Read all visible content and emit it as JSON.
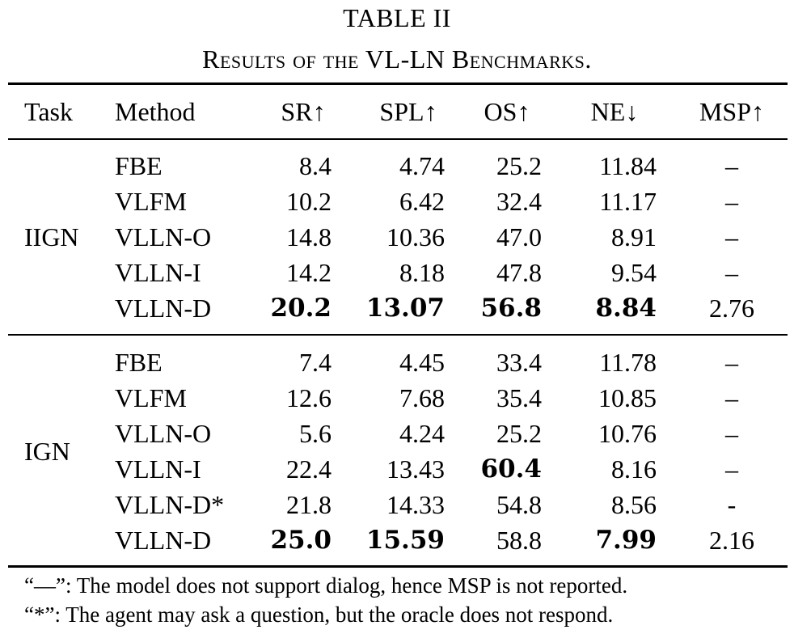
{
  "caption": {
    "title": "TABLE II",
    "subtitle": "Results of the VL-LN Benchmarks."
  },
  "table": {
    "headers": [
      "Task",
      "Method",
      "SR↑",
      "SPL↑",
      "OS↑",
      "NE↓",
      "MSP↑"
    ],
    "groups": [
      {
        "task": "IIGN",
        "rows": [
          {
            "method": "FBE",
            "sr": "8.4",
            "spl": "4.74",
            "os": "25.2",
            "ne": "11.84",
            "msp": "–"
          },
          {
            "method": "VLFM",
            "sr": "10.2",
            "spl": "6.42",
            "os": "32.4",
            "ne": "11.17",
            "msp": "–"
          },
          {
            "method": "VLLN-O",
            "sr": "14.8",
            "spl": "10.36",
            "os": "47.0",
            "ne": "8.91",
            "msp": "–"
          },
          {
            "method": "VLLN-I",
            "sr": "14.2",
            "spl": "8.18",
            "os": "47.8",
            "ne": "9.54",
            "msp": "–"
          },
          {
            "method": "VLLN-D",
            "sr": "20.2",
            "spl": "13.07",
            "os": "56.8",
            "ne": "8.84",
            "msp": "2.76"
          }
        ]
      },
      {
        "task": "IGN",
        "rows": [
          {
            "method": "FBE",
            "sr": "7.4",
            "spl": "4.45",
            "os": "33.4",
            "ne": "11.78",
            "msp": "–"
          },
          {
            "method": "VLFM",
            "sr": "12.6",
            "spl": "7.68",
            "os": "35.4",
            "ne": "10.85",
            "msp": "–"
          },
          {
            "method": "VLLN-O",
            "sr": "5.6",
            "spl": "4.24",
            "os": "25.2",
            "ne": "10.76",
            "msp": "–"
          },
          {
            "method": "VLLN-I",
            "sr": "22.4",
            "spl": "13.43",
            "os": "60.4",
            "ne": "8.16",
            "msp": "–"
          },
          {
            "method": "VLLN-D*",
            "sr": "21.8",
            "spl": "14.33",
            "os": "54.8",
            "ne": "8.56",
            "msp": "-"
          },
          {
            "method": "VLLN-D",
            "sr": "25.0",
            "spl": "15.59",
            "os": "58.8",
            "ne": "7.99",
            "msp": "2.16"
          }
        ]
      }
    ],
    "bold_cells": {
      "IIGN": {
        "VLLN-D": [
          "sr",
          "spl",
          "os",
          "ne"
        ]
      },
      "IGN": {
        "VLLN-I": [
          "os"
        ],
        "VLLN-D": [
          "sr",
          "spl",
          "ne"
        ]
      }
    }
  },
  "footnotes": [
    "“—”: The model does not support dialog, hence MSP is not reported.",
    "“*”: The agent may ask a question, but the oracle does not respond."
  ]
}
